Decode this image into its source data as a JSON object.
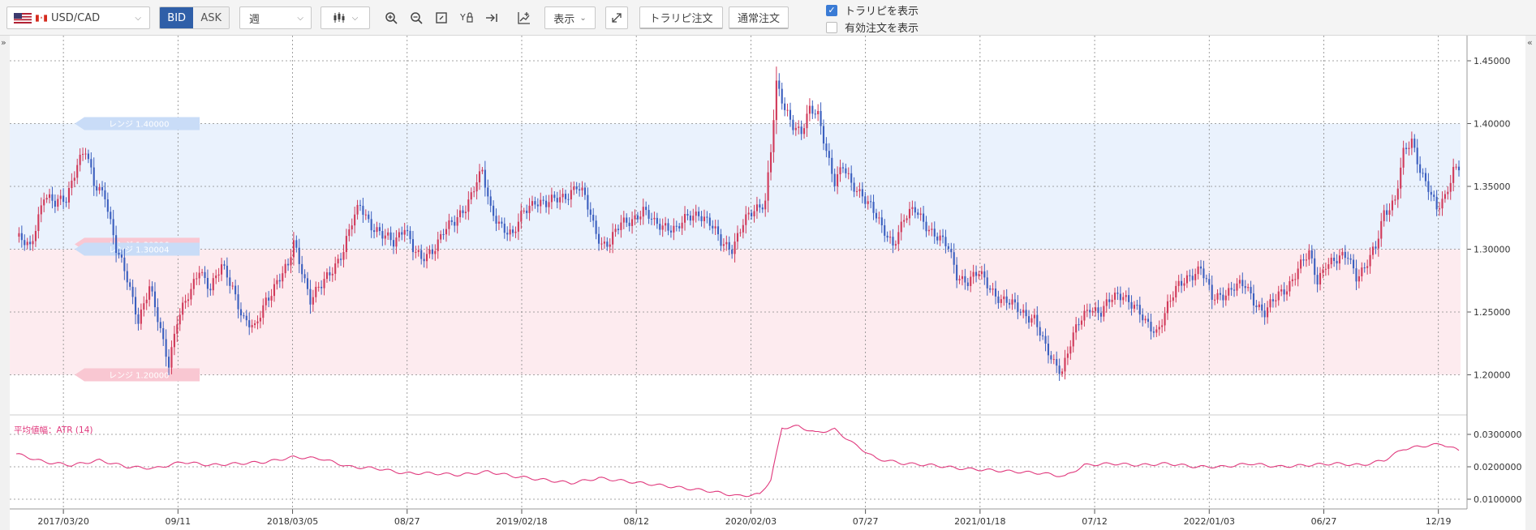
{
  "toolbar": {
    "symbol": "USD/CAD",
    "bid_label": "BID",
    "ask_label": "ASK",
    "period": "週",
    "display_label": "表示",
    "tp_order_label": "トラリピ注文",
    "normal_order_label": "通常注文",
    "show_trap_label": "トラリピを表示",
    "show_trap_checked": true,
    "show_active_label": "有効注文を表示",
    "show_active_checked": false
  },
  "icons": [
    "us-flag-icon",
    "ca-flag-icon",
    "chevron-down-icon",
    "candlestick-icon",
    "zoom-in-icon",
    "zoom-out-icon",
    "fit-icon",
    "y-scale-icon",
    "scroll-end-icon",
    "add-indicator-icon",
    "expand-icon",
    "collapse-left-icon",
    "collapse-right-icon"
  ],
  "colors": {
    "up": "#d13a5a",
    "down": "#3b5fbf",
    "blue_band": "#eaf2fd",
    "red_band": "#fdebef",
    "atr": "#e0397d"
  },
  "chart_data": [
    {
      "type": "candlestick",
      "ylim": [
        1.17,
        1.47
      ],
      "y_ticks": [
        "1.45000",
        "1.40000",
        "1.35000",
        "1.30000",
        "1.25000",
        "1.20000"
      ],
      "x_labels": [
        "2017/03/20",
        "09/11",
        "2018/03/05",
        "08/27",
        "2019/02/18",
        "08/12",
        "2020/02/03",
        "07/27",
        "2021/01/18",
        "07/12",
        "2022/01/03",
        "06/27",
        "12/19"
      ],
      "ranges": [
        {
          "label": "レンジ 1.40000",
          "value": 1.4,
          "color": "blue"
        },
        {
          "label": "レンジ 1.30396",
          "value": 1.30396,
          "color": "red"
        },
        {
          "label": "レンジ 1.30004",
          "value": 1.30004,
          "color": "blue"
        },
        {
          "label": "レンジ 1.20000",
          "value": 1.2,
          "color": "red"
        }
      ],
      "bands": [
        {
          "from": 1.3,
          "to": 1.4,
          "color": "blue"
        },
        {
          "from": 1.2,
          "to": 1.3,
          "color": "red"
        }
      ],
      "close_path": [
        [
          0,
          1.31
        ],
        [
          5,
          1.3
        ],
        [
          10,
          1.345
        ],
        [
          14,
          1.335
        ],
        [
          18,
          1.34
        ],
        [
          22,
          1.37
        ],
        [
          25,
          1.378
        ],
        [
          28,
          1.35
        ],
        [
          32,
          1.345
        ],
        [
          36,
          1.3
        ],
        [
          40,
          1.275
        ],
        [
          44,
          1.245
        ],
        [
          48,
          1.27
        ],
        [
          53,
          1.225
        ],
        [
          55,
          1.21
        ],
        [
          58,
          1.245
        ],
        [
          63,
          1.265
        ],
        [
          66,
          1.285
        ],
        [
          70,
          1.27
        ],
        [
          74,
          1.285
        ],
        [
          78,
          1.27
        ],
        [
          82,
          1.245
        ],
        [
          86,
          1.235
        ],
        [
          90,
          1.26
        ],
        [
          94,
          1.275
        ],
        [
          98,
          1.285
        ],
        [
          100,
          1.305
        ],
        [
          103,
          1.285
        ],
        [
          106,
          1.26
        ],
        [
          110,
          1.27
        ],
        [
          114,
          1.285
        ],
        [
          118,
          1.3
        ],
        [
          121,
          1.32
        ],
        [
          124,
          1.335
        ],
        [
          128,
          1.32
        ],
        [
          132,
          1.31
        ],
        [
          136,
          1.305
        ],
        [
          140,
          1.32
        ],
        [
          143,
          1.3
        ],
        [
          146,
          1.29
        ],
        [
          150,
          1.3
        ],
        [
          154,
          1.315
        ],
        [
          158,
          1.32
        ],
        [
          162,
          1.335
        ],
        [
          166,
          1.355
        ],
        [
          168,
          1.36
        ],
        [
          171,
          1.33
        ],
        [
          175,
          1.32
        ],
        [
          179,
          1.31
        ],
        [
          183,
          1.33
        ],
        [
          187,
          1.34
        ],
        [
          191,
          1.335
        ],
        [
          195,
          1.34
        ],
        [
          199,
          1.345
        ],
        [
          202,
          1.35
        ],
        [
          205,
          1.34
        ],
        [
          208,
          1.32
        ],
        [
          211,
          1.305
        ],
        [
          214,
          1.305
        ],
        [
          218,
          1.32
        ],
        [
          222,
          1.325
        ],
        [
          226,
          1.33
        ],
        [
          230,
          1.32
        ],
        [
          234,
          1.32
        ],
        [
          238,
          1.315
        ],
        [
          242,
          1.325
        ],
        [
          246,
          1.33
        ],
        [
          250,
          1.32
        ],
        [
          254,
          1.305
        ],
        [
          258,
          1.302
        ],
        [
          262,
          1.32
        ],
        [
          266,
          1.33
        ],
        [
          270,
          1.34
        ],
        [
          272,
          1.38
        ],
        [
          274,
          1.43
        ],
        [
          277,
          1.41
        ],
        [
          280,
          1.4
        ],
        [
          283,
          1.395
        ],
        [
          286,
          1.41
        ],
        [
          289,
          1.405
        ],
        [
          292,
          1.38
        ],
        [
          295,
          1.355
        ],
        [
          298,
          1.365
        ],
        [
          301,
          1.35
        ],
        [
          305,
          1.345
        ],
        [
          308,
          1.335
        ],
        [
          312,
          1.315
        ],
        [
          316,
          1.305
        ],
        [
          320,
          1.325
        ],
        [
          324,
          1.33
        ],
        [
          328,
          1.32
        ],
        [
          332,
          1.31
        ],
        [
          336,
          1.3
        ],
        [
          339,
          1.28
        ],
        [
          343,
          1.275
        ],
        [
          347,
          1.28
        ],
        [
          351,
          1.27
        ],
        [
          355,
          1.26
        ],
        [
          359,
          1.255
        ],
        [
          363,
          1.25
        ],
        [
          367,
          1.245
        ],
        [
          371,
          1.22
        ],
        [
          374,
          1.21
        ],
        [
          377,
          1.205
        ],
        [
          380,
          1.225
        ],
        [
          383,
          1.24
        ],
        [
          387,
          1.255
        ],
        [
          391,
          1.25
        ],
        [
          395,
          1.26
        ],
        [
          399,
          1.265
        ],
        [
          403,
          1.255
        ],
        [
          407,
          1.24
        ],
        [
          411,
          1.235
        ],
        [
          415,
          1.255
        ],
        [
          419,
          1.27
        ],
        [
          423,
          1.28
        ],
        [
          427,
          1.285
        ],
        [
          431,
          1.26
        ],
        [
          435,
          1.265
        ],
        [
          439,
          1.27
        ],
        [
          443,
          1.27
        ],
        [
          446,
          1.26
        ],
        [
          450,
          1.25
        ],
        [
          454,
          1.26
        ],
        [
          458,
          1.27
        ],
        [
          462,
          1.285
        ],
        [
          466,
          1.295
        ],
        [
          469,
          1.275
        ],
        [
          472,
          1.29
        ],
        [
          476,
          1.29
        ],
        [
          480,
          1.295
        ],
        [
          483,
          1.28
        ],
        [
          486,
          1.285
        ],
        [
          490,
          1.3
        ],
        [
          493,
          1.33
        ],
        [
          497,
          1.34
        ],
        [
          500,
          1.375
        ],
        [
          503,
          1.385
        ],
        [
          506,
          1.365
        ],
        [
          509,
          1.35
        ],
        [
          512,
          1.33
        ],
        [
          515,
          1.34
        ],
        [
          518,
          1.365
        ],
        [
          520,
          1.368
        ]
      ]
    },
    {
      "type": "line",
      "title": "平均値幅：ATR (14)",
      "series_name": "ATR (14)",
      "ylim": [
        0.007,
        0.035
      ],
      "y_ticks": [
        "0.0300000",
        "0.0200000",
        "0.0100000"
      ],
      "points": [
        [
          0,
          0.024
        ],
        [
          10,
          0.0215
        ],
        [
          20,
          0.0205
        ],
        [
          30,
          0.022
        ],
        [
          40,
          0.02
        ],
        [
          50,
          0.0195
        ],
        [
          60,
          0.0215
        ],
        [
          70,
          0.0205
        ],
        [
          80,
          0.021
        ],
        [
          90,
          0.0215
        ],
        [
          100,
          0.023
        ],
        [
          110,
          0.0225
        ],
        [
          120,
          0.02
        ],
        [
          130,
          0.0195
        ],
        [
          140,
          0.018
        ],
        [
          150,
          0.018
        ],
        [
          160,
          0.0175
        ],
        [
          170,
          0.0185
        ],
        [
          180,
          0.017
        ],
        [
          190,
          0.016
        ],
        [
          200,
          0.015
        ],
        [
          210,
          0.0165
        ],
        [
          220,
          0.0155
        ],
        [
          230,
          0.0145
        ],
        [
          240,
          0.0135
        ],
        [
          250,
          0.0125
        ],
        [
          260,
          0.011
        ],
        [
          268,
          0.0115
        ],
        [
          272,
          0.016
        ],
        [
          276,
          0.032
        ],
        [
          282,
          0.0325
        ],
        [
          288,
          0.0305
        ],
        [
          295,
          0.0315
        ],
        [
          302,
          0.027
        ],
        [
          310,
          0.0225
        ],
        [
          320,
          0.021
        ],
        [
          330,
          0.0205
        ],
        [
          340,
          0.0195
        ],
        [
          350,
          0.019
        ],
        [
          360,
          0.0185
        ],
        [
          370,
          0.018
        ],
        [
          378,
          0.017
        ],
        [
          385,
          0.0205
        ],
        [
          395,
          0.021
        ],
        [
          405,
          0.0205
        ],
        [
          415,
          0.021
        ],
        [
          425,
          0.02
        ],
        [
          435,
          0.02
        ],
        [
          445,
          0.021
        ],
        [
          455,
          0.02
        ],
        [
          465,
          0.0205
        ],
        [
          475,
          0.021
        ],
        [
          485,
          0.0205
        ],
        [
          493,
          0.022
        ],
        [
          500,
          0.0255
        ],
        [
          508,
          0.0265
        ],
        [
          514,
          0.027
        ],
        [
          520,
          0.025
        ]
      ]
    }
  ]
}
